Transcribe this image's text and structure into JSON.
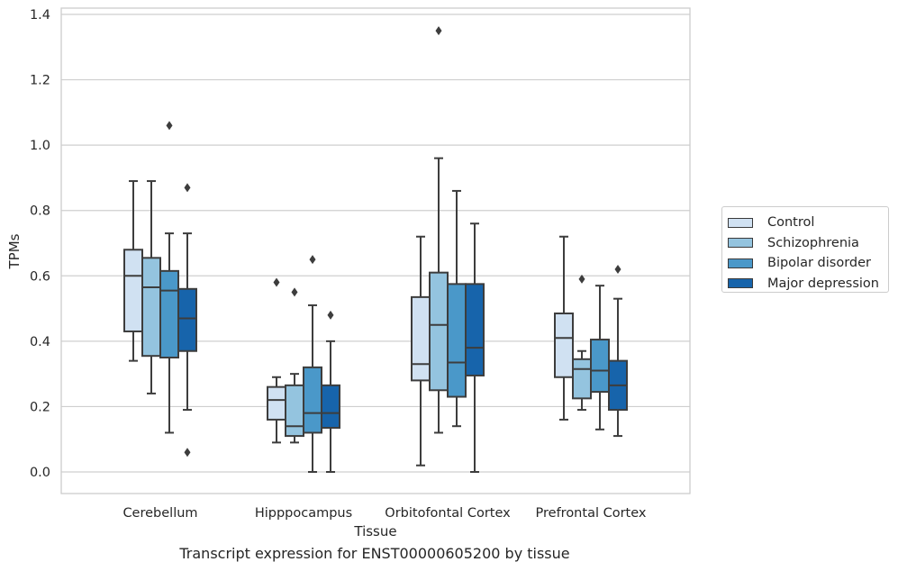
{
  "caption": "Transcript expression for ENST00000605200 by tissue",
  "chart_data": {
    "type": "box",
    "title": "",
    "xlabel": "Tissue",
    "ylabel": "TPMs",
    "ylim": [
      -0.065,
      1.42
    ],
    "yticks": [
      0.0,
      0.2,
      0.4,
      0.6,
      0.8,
      1.0,
      1.2,
      1.4
    ],
    "ytick_labels": [
      "0.0",
      "0.2",
      "0.4",
      "0.6",
      "0.8",
      "1.0",
      "1.2",
      "1.4"
    ],
    "grid": "horizontal",
    "legend_placement": "outside-right",
    "categories": [
      "Cerebellum",
      "Hipppocampus",
      "Orbitofontal Cortex",
      "Prefrontal Cortex"
    ],
    "series": [
      {
        "name": "Control",
        "color": "#d0e1f2",
        "boxes": [
          {
            "whisker_low": 0.34,
            "q1": 0.43,
            "median": 0.6,
            "q3": 0.68,
            "whisker_high": 0.89,
            "outliers": []
          },
          {
            "whisker_low": 0.09,
            "q1": 0.16,
            "median": 0.22,
            "q3": 0.26,
            "whisker_high": 0.29,
            "outliers": [
              0.58
            ]
          },
          {
            "whisker_low": 0.02,
            "q1": 0.28,
            "median": 0.33,
            "q3": 0.535,
            "whisker_high": 0.72,
            "outliers": []
          },
          {
            "whisker_low": 0.16,
            "q1": 0.29,
            "median": 0.41,
            "q3": 0.485,
            "whisker_high": 0.72,
            "outliers": []
          }
        ]
      },
      {
        "name": "Schizophrenia",
        "color": "#94c4df",
        "boxes": [
          {
            "whisker_low": 0.24,
            "q1": 0.355,
            "median": 0.565,
            "q3": 0.655,
            "whisker_high": 0.89,
            "outliers": []
          },
          {
            "whisker_low": 0.09,
            "q1": 0.11,
            "median": 0.14,
            "q3": 0.265,
            "whisker_high": 0.3,
            "outliers": [
              0.55
            ]
          },
          {
            "whisker_low": 0.12,
            "q1": 0.25,
            "median": 0.45,
            "q3": 0.61,
            "whisker_high": 0.96,
            "outliers": [
              1.35
            ]
          },
          {
            "whisker_low": 0.19,
            "q1": 0.225,
            "median": 0.315,
            "q3": 0.345,
            "whisker_high": 0.37,
            "outliers": [
              0.59
            ]
          }
        ]
      },
      {
        "name": "Bipolar disorder",
        "color": "#4a98c9",
        "boxes": [
          {
            "whisker_low": 0.12,
            "q1": 0.35,
            "median": 0.555,
            "q3": 0.615,
            "whisker_high": 0.73,
            "outliers": [
              1.06
            ]
          },
          {
            "whisker_low": 0.0,
            "q1": 0.12,
            "median": 0.18,
            "q3": 0.32,
            "whisker_high": 0.51,
            "outliers": [
              0.65
            ]
          },
          {
            "whisker_low": 0.14,
            "q1": 0.23,
            "median": 0.335,
            "q3": 0.575,
            "whisker_high": 0.86,
            "outliers": []
          },
          {
            "whisker_low": 0.13,
            "q1": 0.245,
            "median": 0.31,
            "q3": 0.405,
            "whisker_high": 0.57,
            "outliers": []
          }
        ]
      },
      {
        "name": "Major depression",
        "color": "#1764ab",
        "boxes": [
          {
            "whisker_low": 0.19,
            "q1": 0.37,
            "median": 0.47,
            "q3": 0.56,
            "whisker_high": 0.73,
            "outliers": [
              0.87,
              0.06
            ]
          },
          {
            "whisker_low": 0.0,
            "q1": 0.135,
            "median": 0.18,
            "q3": 0.265,
            "whisker_high": 0.4,
            "outliers": [
              0.48
            ]
          },
          {
            "whisker_low": 0.0,
            "q1": 0.295,
            "median": 0.38,
            "q3": 0.575,
            "whisker_high": 0.76,
            "outliers": []
          },
          {
            "whisker_low": 0.11,
            "q1": 0.19,
            "median": 0.265,
            "q3": 0.34,
            "whisker_high": 0.53,
            "outliers": [
              0.62
            ]
          }
        ]
      }
    ]
  }
}
